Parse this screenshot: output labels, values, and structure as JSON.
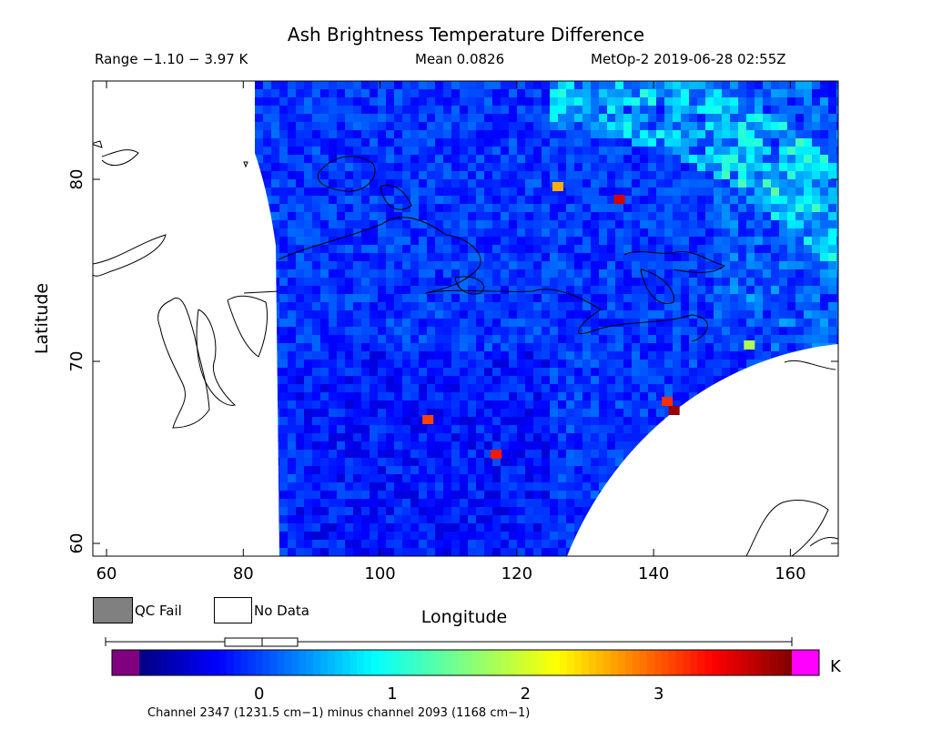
{
  "header": {
    "title": "Ash Brightness Temperature Difference",
    "range": "Range −1.10 − 3.97 K",
    "mean": "Mean 0.0826",
    "instrument": "MetOp-2 2019-06-28 02:55Z"
  },
  "legend": {
    "qc_fail_label": "QC Fail",
    "no_data_label": "No Data",
    "qc_fail_color": "#808080",
    "no_data_color": "#ffffff"
  },
  "chart_data": {
    "type": "heatmap",
    "title": "Ash Brightness Temperature Difference",
    "xlabel": "Longitude",
    "ylabel": "Latitude",
    "xlim": [
      58,
      167
    ],
    "ylim": [
      59.3,
      85.4
    ],
    "x_ticks": [
      60,
      80,
      100,
      120,
      140,
      160
    ],
    "y_ticks": [
      60,
      70,
      80
    ],
    "stats": {
      "min": -1.1,
      "max": 3.97,
      "mean": 0.0826,
      "units": "K"
    },
    "boxplot": {
      "min": -1.1,
      "q1": -0.24,
      "median": 0.03,
      "q3": 0.29,
      "max": 3.97
    },
    "colorbar": {
      "vmin": -0.9,
      "vmax": 4.0,
      "ticks": [
        0,
        1,
        2,
        3
      ],
      "units_label": "K",
      "under_color": "#800080",
      "over_color": "#ff00ff",
      "caption": "Channel 2347 (1231.5 cm−1) minus channel 2093 (1168 cm−1)"
    },
    "notable_values": [
      {
        "lon": 143,
        "lat": 67.3,
        "value": 3.9
      },
      {
        "lon": 142,
        "lat": 67.8,
        "value": 3.2
      },
      {
        "lon": 154,
        "lat": 70.9,
        "value": 1.8
      },
      {
        "lon": 135,
        "lat": 78.9,
        "value": 3.6
      },
      {
        "lon": 126,
        "lat": 79.6,
        "value": 2.6
      },
      {
        "lon": 117,
        "lat": 64.9,
        "value": 3.3
      },
      {
        "lon": 107,
        "lat": 66.8,
        "value": 3.1
      }
    ]
  }
}
